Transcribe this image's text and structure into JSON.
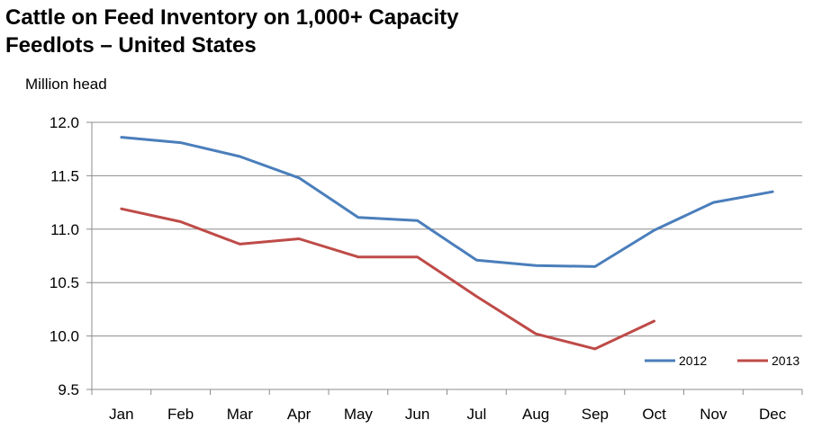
{
  "chart_data": {
    "type": "line",
    "title": [
      "Cattle on Feed Inventory on 1,000+ Capacity",
      "Feedlots – United States"
    ],
    "ylabel": "Million head",
    "xlabel": "",
    "ylim": [
      9.5,
      12.0
    ],
    "yticks": [
      "9.5",
      "10.0",
      "10.5",
      "11.0",
      "11.5",
      "12.0"
    ],
    "yticks_values": [
      9.5,
      10.0,
      10.5,
      11.0,
      11.5,
      12.0
    ],
    "categories": [
      "Jan",
      "Feb",
      "Mar",
      "Apr",
      "May",
      "Jun",
      "Jul",
      "Aug",
      "Sep",
      "Oct",
      "Nov",
      "Dec"
    ],
    "grid": true,
    "legend_position": "bottom-right",
    "series": [
      {
        "name": "2012",
        "color": "#4a7ebb",
        "values": [
          11.86,
          11.81,
          11.68,
          11.48,
          11.11,
          11.08,
          10.71,
          10.66,
          10.65,
          10.99,
          11.25,
          11.35
        ]
      },
      {
        "name": "2013",
        "color": "#be4b48",
        "values": [
          11.19,
          11.07,
          10.86,
          10.91,
          10.74,
          10.74,
          10.37,
          10.02,
          9.88,
          10.14,
          null,
          null
        ]
      }
    ]
  }
}
